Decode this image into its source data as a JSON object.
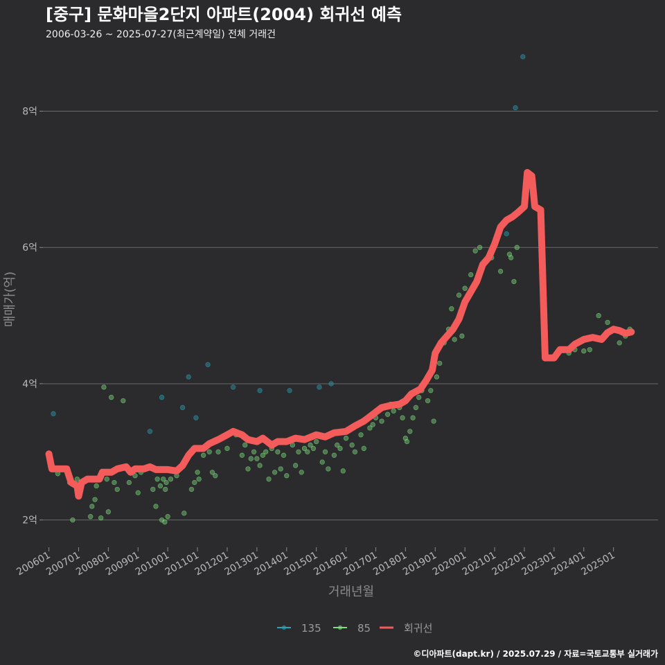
{
  "chart_data": {
    "type": "scatter",
    "title": "[중구] 문화마을2단지 아파트(2004) 회귀선 예측",
    "subtitle": "2006-03-26 ~ 2025-07-27(최근계약일) 전체 거래건",
    "xlabel": "거래년월",
    "ylabel": "매매가(억)",
    "caption": "©디아파트(dapt.kr) / 2025.07.29 / 자료=국토교통부 실거래가",
    "xlim": [
      2005.8,
      2026.5
    ],
    "ylim": [
      1.6,
      8.9
    ],
    "x_ticks": [
      {
        "value": 2006,
        "label": "200601"
      },
      {
        "value": 2007,
        "label": "200701"
      },
      {
        "value": 2008,
        "label": "200801"
      },
      {
        "value": 2009,
        "label": "200901"
      },
      {
        "value": 2010,
        "label": "201001"
      },
      {
        "value": 2011,
        "label": "201101"
      },
      {
        "value": 2012,
        "label": "201201"
      },
      {
        "value": 2013,
        "label": "201301"
      },
      {
        "value": 2014,
        "label": "201401"
      },
      {
        "value": 2015,
        "label": "201501"
      },
      {
        "value": 2016,
        "label": "201601"
      },
      {
        "value": 2017,
        "label": "201701"
      },
      {
        "value": 2018,
        "label": "201801"
      },
      {
        "value": 2019,
        "label": "201901"
      },
      {
        "value": 2020,
        "label": "202001"
      },
      {
        "value": 2021,
        "label": "202101"
      },
      {
        "value": 2022,
        "label": "202201"
      },
      {
        "value": 2023,
        "label": "202301"
      },
      {
        "value": 2024,
        "label": "202401"
      },
      {
        "value": 2025,
        "label": "202501"
      }
    ],
    "y_ticks": [
      {
        "value": 2,
        "label": "2억"
      },
      {
        "value": 4,
        "label": "4억"
      },
      {
        "value": 6,
        "label": "6억"
      },
      {
        "value": 8,
        "label": "8억"
      }
    ],
    "legend": [
      {
        "name": "135",
        "color": "#2aa3b8",
        "kind": "point"
      },
      {
        "name": "85",
        "color": "#7fe07f",
        "kind": "point"
      },
      {
        "name": "회귀선",
        "color": "#f45b5b",
        "kind": "line"
      }
    ],
    "series": [
      {
        "name": "135",
        "color": "#2aa3b8",
        "points": [
          [
            2006.15,
            3.56
          ],
          [
            2009.4,
            3.3
          ],
          [
            2009.8,
            3.8
          ],
          [
            2010.5,
            3.65
          ],
          [
            2010.7,
            4.1
          ],
          [
            2010.95,
            3.5
          ],
          [
            2011.35,
            4.28
          ],
          [
            2012.2,
            3.95
          ],
          [
            2013.1,
            3.9
          ],
          [
            2014.1,
            3.9
          ],
          [
            2015.1,
            3.95
          ],
          [
            2015.5,
            4.0
          ],
          [
            2021.4,
            6.2
          ],
          [
            2021.7,
            8.05
          ],
          [
            2021.95,
            8.8
          ]
        ]
      },
      {
        "name": "85",
        "color": "#7fe07f",
        "points": [
          [
            2006.3,
            2.68
          ],
          [
            2006.7,
            2.55
          ],
          [
            2006.8,
            2.0
          ],
          [
            2006.95,
            2.6
          ],
          [
            2007.4,
            2.05
          ],
          [
            2007.45,
            2.2
          ],
          [
            2007.55,
            2.3
          ],
          [
            2007.6,
            2.5
          ],
          [
            2007.75,
            2.03
          ],
          [
            2007.85,
            3.95
          ],
          [
            2007.95,
            2.6
          ],
          [
            2008.0,
            2.12
          ],
          [
            2008.1,
            3.8
          ],
          [
            2008.2,
            2.55
          ],
          [
            2008.3,
            2.45
          ],
          [
            2008.5,
            3.75
          ],
          [
            2008.7,
            2.55
          ],
          [
            2008.9,
            2.65
          ],
          [
            2009.0,
            2.4
          ],
          [
            2009.1,
            2.7
          ],
          [
            2009.5,
            2.45
          ],
          [
            2009.6,
            2.2
          ],
          [
            2009.65,
            2.6
          ],
          [
            2009.75,
            2.5
          ],
          [
            2009.8,
            2.0
          ],
          [
            2009.85,
            2.6
          ],
          [
            2009.9,
            1.97
          ],
          [
            2009.92,
            2.45
          ],
          [
            2009.95,
            2.55
          ],
          [
            2010.0,
            2.05
          ],
          [
            2010.1,
            2.6
          ],
          [
            2010.3,
            2.65
          ],
          [
            2010.55,
            2.1
          ],
          [
            2010.8,
            2.45
          ],
          [
            2010.9,
            2.55
          ],
          [
            2011.0,
            2.7
          ],
          [
            2011.05,
            2.6
          ],
          [
            2011.2,
            2.95
          ],
          [
            2011.4,
            3.0
          ],
          [
            2011.5,
            2.7
          ],
          [
            2011.6,
            2.65
          ],
          [
            2011.7,
            3.0
          ],
          [
            2012.0,
            3.05
          ],
          [
            2012.3,
            3.25
          ],
          [
            2012.5,
            2.95
          ],
          [
            2012.6,
            3.1
          ],
          [
            2012.7,
            2.75
          ],
          [
            2012.8,
            2.9
          ],
          [
            2012.9,
            3.0
          ],
          [
            2013.0,
            2.9
          ],
          [
            2013.1,
            2.8
          ],
          [
            2013.2,
            2.95
          ],
          [
            2013.3,
            3.0
          ],
          [
            2013.4,
            2.6
          ],
          [
            2013.5,
            3.05
          ],
          [
            2013.6,
            2.7
          ],
          [
            2013.7,
            3.0
          ],
          [
            2013.8,
            2.75
          ],
          [
            2013.9,
            2.95
          ],
          [
            2014.0,
            2.65
          ],
          [
            2014.2,
            3.1
          ],
          [
            2014.3,
            2.8
          ],
          [
            2014.4,
            3.0
          ],
          [
            2014.5,
            2.7
          ],
          [
            2014.6,
            3.05
          ],
          [
            2014.7,
            3.0
          ],
          [
            2014.8,
            3.1
          ],
          [
            2014.9,
            3.05
          ],
          [
            2015.0,
            3.15
          ],
          [
            2015.2,
            2.85
          ],
          [
            2015.3,
            3.0
          ],
          [
            2015.4,
            2.75
          ],
          [
            2015.6,
            2.95
          ],
          [
            2015.7,
            3.1
          ],
          [
            2015.8,
            3.05
          ],
          [
            2015.9,
            2.72
          ],
          [
            2016.0,
            3.2
          ],
          [
            2016.2,
            3.1
          ],
          [
            2016.3,
            3.0
          ],
          [
            2016.5,
            3.25
          ],
          [
            2016.6,
            3.05
          ],
          [
            2016.8,
            3.35
          ],
          [
            2016.9,
            3.4
          ],
          [
            2017.0,
            3.5
          ],
          [
            2017.1,
            3.6
          ],
          [
            2017.2,
            3.45
          ],
          [
            2017.4,
            3.55
          ],
          [
            2017.5,
            3.7
          ],
          [
            2017.6,
            3.6
          ],
          [
            2017.8,
            3.65
          ],
          [
            2017.9,
            3.5
          ],
          [
            2018.0,
            3.2
          ],
          [
            2018.05,
            3.15
          ],
          [
            2018.15,
            3.3
          ],
          [
            2018.25,
            3.5
          ],
          [
            2018.35,
            3.65
          ],
          [
            2018.45,
            3.8
          ],
          [
            2018.55,
            3.9
          ],
          [
            2018.65,
            4.0
          ],
          [
            2018.75,
            3.75
          ],
          [
            2018.85,
            3.9
          ],
          [
            2018.95,
            3.45
          ],
          [
            2019.05,
            4.1
          ],
          [
            2019.15,
            4.3
          ],
          [
            2019.3,
            4.6
          ],
          [
            2019.45,
            4.8
          ],
          [
            2019.55,
            5.1
          ],
          [
            2019.65,
            4.65
          ],
          [
            2019.8,
            5.3
          ],
          [
            2019.9,
            4.7
          ],
          [
            2020.0,
            5.4
          ],
          [
            2020.2,
            5.6
          ],
          [
            2020.35,
            5.95
          ],
          [
            2020.5,
            6.0
          ],
          [
            2020.9,
            5.85
          ],
          [
            2021.2,
            5.65
          ],
          [
            2021.5,
            5.9
          ],
          [
            2021.55,
            5.85
          ],
          [
            2021.65,
            5.5
          ],
          [
            2021.75,
            6.0
          ],
          [
            2023.5,
            4.45
          ],
          [
            2023.7,
            4.5
          ],
          [
            2024.0,
            4.48
          ],
          [
            2024.2,
            4.5
          ],
          [
            2024.5,
            5.0
          ],
          [
            2024.8,
            4.9
          ],
          [
            2025.2,
            4.6
          ],
          [
            2025.4,
            4.7
          ],
          [
            2025.55,
            4.8
          ]
        ]
      }
    ],
    "regression_line": {
      "name": "회귀선",
      "color": "#f45b5b",
      "points": [
        [
          2006.0,
          2.97
        ],
        [
          2006.1,
          2.75
        ],
        [
          2006.6,
          2.75
        ],
        [
          2006.75,
          2.55
        ],
        [
          2006.95,
          2.5
        ],
        [
          2007.0,
          2.35
        ],
        [
          2007.1,
          2.55
        ],
        [
          2007.3,
          2.6
        ],
        [
          2007.7,
          2.6
        ],
        [
          2007.8,
          2.7
        ],
        [
          2008.1,
          2.7
        ],
        [
          2008.3,
          2.75
        ],
        [
          2008.6,
          2.78
        ],
        [
          2008.75,
          2.7
        ],
        [
          2008.9,
          2.75
        ],
        [
          2009.2,
          2.75
        ],
        [
          2009.4,
          2.78
        ],
        [
          2009.6,
          2.74
        ],
        [
          2010.0,
          2.74
        ],
        [
          2010.3,
          2.72
        ],
        [
          2010.5,
          2.8
        ],
        [
          2010.7,
          2.95
        ],
        [
          2010.9,
          3.05
        ],
        [
          2011.2,
          3.05
        ],
        [
          2011.4,
          3.12
        ],
        [
          2011.7,
          3.18
        ],
        [
          2012.0,
          3.25
        ],
        [
          2012.2,
          3.3
        ],
        [
          2012.5,
          3.25
        ],
        [
          2012.7,
          3.18
        ],
        [
          2013.0,
          3.15
        ],
        [
          2013.2,
          3.2
        ],
        [
          2013.5,
          3.1
        ],
        [
          2013.7,
          3.15
        ],
        [
          2014.0,
          3.15
        ],
        [
          2014.3,
          3.2
        ],
        [
          2014.6,
          3.18
        ],
        [
          2015.0,
          3.25
        ],
        [
          2015.3,
          3.22
        ],
        [
          2015.6,
          3.28
        ],
        [
          2016.0,
          3.3
        ],
        [
          2016.3,
          3.38
        ],
        [
          2016.6,
          3.45
        ],
        [
          2016.9,
          3.55
        ],
        [
          2017.2,
          3.65
        ],
        [
          2017.5,
          3.68
        ],
        [
          2017.8,
          3.7
        ],
        [
          2018.0,
          3.75
        ],
        [
          2018.2,
          3.85
        ],
        [
          2018.5,
          3.92
        ],
        [
          2018.7,
          4.05
        ],
        [
          2018.9,
          4.2
        ],
        [
          2019.0,
          4.45
        ],
        [
          2019.2,
          4.6
        ],
        [
          2019.4,
          4.7
        ],
        [
          2019.6,
          4.8
        ],
        [
          2019.8,
          4.95
        ],
        [
          2020.0,
          5.2
        ],
        [
          2020.2,
          5.35
        ],
        [
          2020.4,
          5.5
        ],
        [
          2020.6,
          5.75
        ],
        [
          2020.8,
          5.85
        ],
        [
          2021.0,
          6.05
        ],
        [
          2021.2,
          6.3
        ],
        [
          2021.4,
          6.4
        ],
        [
          2021.6,
          6.45
        ],
        [
          2021.8,
          6.52
        ],
        [
          2022.0,
          6.6
        ],
        [
          2022.1,
          7.1
        ],
        [
          2022.25,
          7.05
        ],
        [
          2022.35,
          6.6
        ],
        [
          2022.55,
          6.55
        ],
        [
          2022.7,
          4.38
        ],
        [
          2023.0,
          4.38
        ],
        [
          2023.2,
          4.5
        ],
        [
          2023.5,
          4.5
        ],
        [
          2023.7,
          4.58
        ],
        [
          2024.0,
          4.65
        ],
        [
          2024.3,
          4.68
        ],
        [
          2024.6,
          4.65
        ],
        [
          2024.8,
          4.75
        ],
        [
          2025.0,
          4.8
        ],
        [
          2025.2,
          4.78
        ],
        [
          2025.4,
          4.74
        ],
        [
          2025.6,
          4.76
        ]
      ]
    }
  }
}
